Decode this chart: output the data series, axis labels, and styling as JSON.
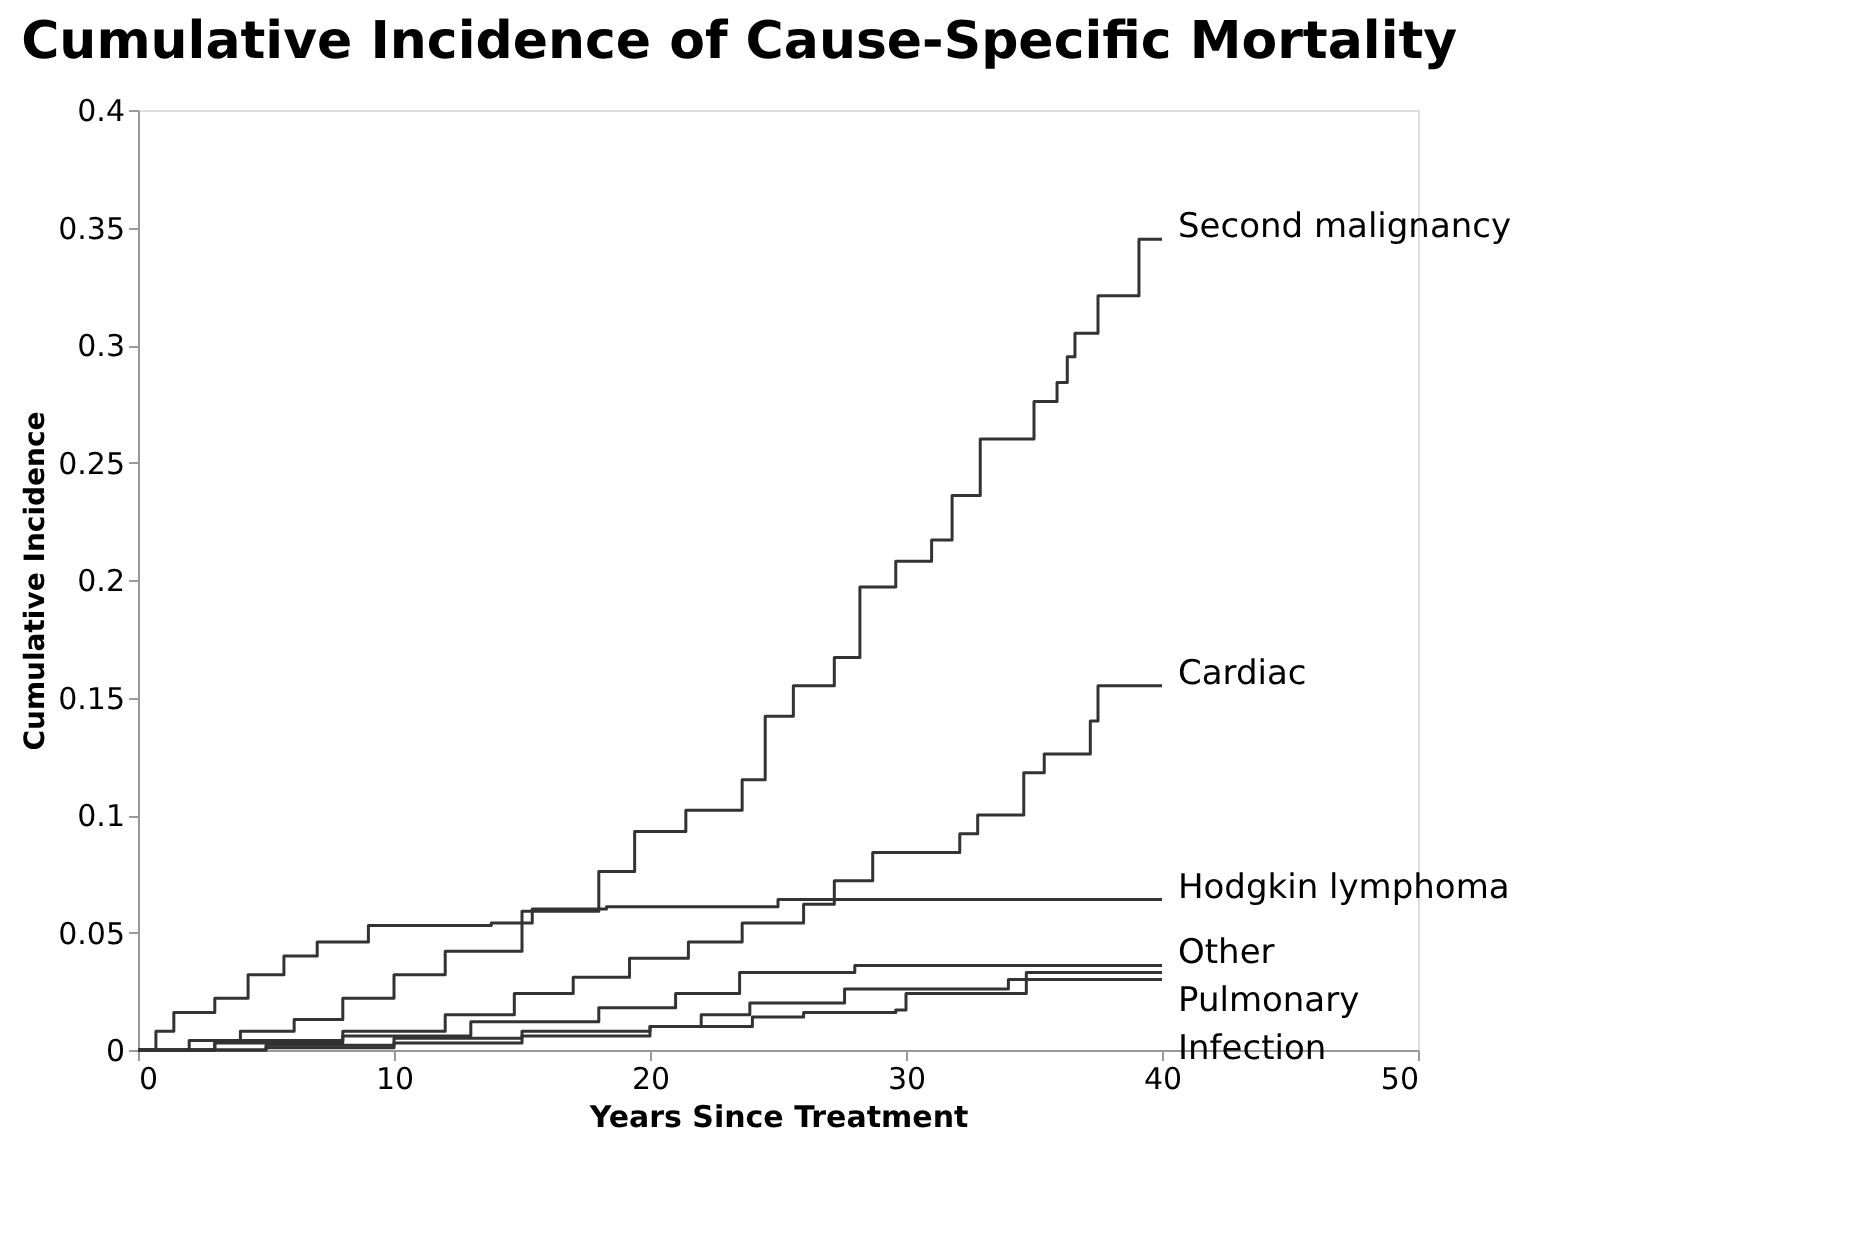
{
  "chart_data": {
    "type": "step",
    "title": "Cumulative Incidence of Cause-Specific Mortality",
    "xlabel": "Years Since Treatment",
    "ylabel": "Cumulative Incidence",
    "xlim": [
      0,
      50
    ],
    "xticks": [
      0,
      10,
      20,
      30,
      40,
      50
    ],
    "ylim": [
      0,
      0.4
    ],
    "yticks": [
      0,
      0.05,
      0.1,
      0.15,
      0.2,
      0.25,
      0.3,
      0.35,
      0.4
    ],
    "grid": false,
    "legend": false,
    "marker": "none",
    "line_style": "solid",
    "series": [
      {
        "name": "Second malignancy",
        "color": "#333333",
        "x": [
          0,
          2,
          4,
          6.1,
          8,
          10,
          12,
          15,
          18,
          19.4,
          21.4,
          23.6,
          24.5,
          25.6,
          27.2,
          28.2,
          29.6,
          31,
          31.8,
          32.9,
          35,
          35.9,
          36.3,
          36.6,
          37.5,
          39.1,
          40
        ],
        "values": [
          0,
          0.004,
          0.008,
          0.013,
          0.022,
          0.032,
          0.042,
          0.059,
          0.076,
          0.093,
          0.102,
          0.115,
          0.142,
          0.155,
          0.167,
          0.197,
          0.208,
          0.217,
          0.236,
          0.26,
          0.276,
          0.284,
          0.295,
          0.305,
          0.321,
          0.345,
          0.345
        ]
      },
      {
        "name": "Cardiac",
        "color": "#333333",
        "x": [
          0,
          3,
          8,
          12,
          14.7,
          17,
          19.2,
          21.5,
          23.6,
          26,
          27.2,
          28.7,
          32.1,
          32.8,
          34.6,
          35.4,
          37.2,
          37.5,
          40
        ],
        "values": [
          0,
          0.004,
          0.008,
          0.015,
          0.024,
          0.031,
          0.039,
          0.046,
          0.054,
          0.062,
          0.072,
          0.084,
          0.092,
          0.1,
          0.118,
          0.126,
          0.14,
          0.155,
          0.155
        ]
      },
      {
        "name": "Hodgkin lymphoma",
        "color": "#333333",
        "x": [
          0,
          0.7,
          1.4,
          3,
          4.3,
          5.7,
          7,
          9,
          13.8,
          15.4,
          18.3,
          25,
          40
        ],
        "values": [
          0,
          0.008,
          0.016,
          0.022,
          0.032,
          0.04,
          0.046,
          0.053,
          0.054,
          0.06,
          0.061,
          0.064,
          0.064
        ]
      },
      {
        "name": "Other",
        "color": "#333333",
        "x": [
          0,
          3,
          8,
          13,
          18,
          21,
          23.5,
          28,
          40
        ],
        "values": [
          0,
          0.003,
          0.006,
          0.012,
          0.018,
          0.024,
          0.033,
          0.036,
          0.036
        ]
      },
      {
        "name": "Pulmonary",
        "color": "#333333",
        "x": [
          0,
          5,
          10,
          15,
          20,
          22,
          23.9,
          27.6,
          34,
          34.7,
          40
        ],
        "values": [
          0,
          0.002,
          0.005,
          0.008,
          0.01,
          0.015,
          0.02,
          0.026,
          0.03,
          0.033,
          0.033
        ]
      },
      {
        "name": "Infection",
        "color": "#333333",
        "x": [
          0,
          5,
          10,
          15,
          20,
          24,
          26,
          29.6,
          30,
          34.1,
          34.7,
          40
        ],
        "values": [
          0,
          0.001,
          0.003,
          0.006,
          0.01,
          0.014,
          0.016,
          0.017,
          0.024,
          0.024,
          0.03,
          0.03
        ]
      }
    ]
  }
}
